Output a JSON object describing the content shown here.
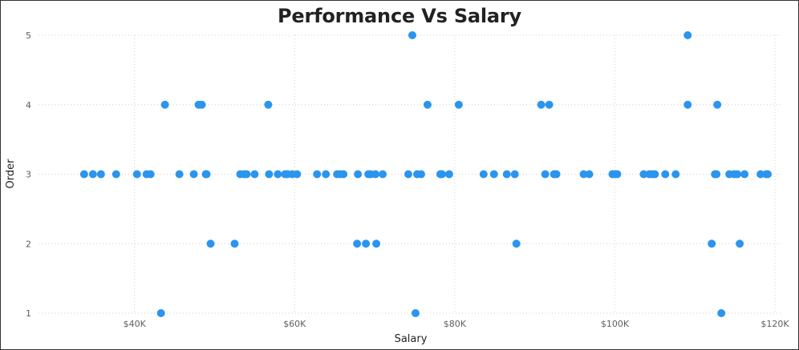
{
  "chart_data": {
    "type": "scatter",
    "title": "Performance Vs Salary",
    "xlabel": "Salary",
    "ylabel": "Order",
    "xlim": [
      28000,
      121000
    ],
    "ylim": [
      1,
      5
    ],
    "x_ticks": [
      40000,
      60000,
      80000,
      100000,
      120000
    ],
    "x_tick_labels": [
      "$40K",
      "$60K",
      "$80K",
      "$100K",
      "$120K"
    ],
    "y_ticks": [
      1,
      2,
      3,
      4,
      5
    ],
    "y_tick_labels": [
      "1",
      "2",
      "3",
      "4",
      "5"
    ],
    "grid": true,
    "legend": "none",
    "marker_color": "#2B95EE",
    "points": [
      {
        "x": 43300,
        "y": 1
      },
      {
        "x": 75100,
        "y": 1
      },
      {
        "x": 113300,
        "y": 1
      },
      {
        "x": 49500,
        "y": 2
      },
      {
        "x": 52500,
        "y": 2
      },
      {
        "x": 67800,
        "y": 2
      },
      {
        "x": 68900,
        "y": 2
      },
      {
        "x": 70200,
        "y": 2
      },
      {
        "x": 87700,
        "y": 2
      },
      {
        "x": 112100,
        "y": 2
      },
      {
        "x": 115600,
        "y": 2
      },
      {
        "x": 43800,
        "y": 4
      },
      {
        "x": 48000,
        "y": 4
      },
      {
        "x": 48400,
        "y": 4
      },
      {
        "x": 56700,
        "y": 4
      },
      {
        "x": 76600,
        "y": 4
      },
      {
        "x": 80500,
        "y": 4
      },
      {
        "x": 90800,
        "y": 4
      },
      {
        "x": 91800,
        "y": 4
      },
      {
        "x": 109100,
        "y": 4
      },
      {
        "x": 112800,
        "y": 4
      },
      {
        "x": 74700,
        "y": 5
      },
      {
        "x": 109100,
        "y": 5
      },
      {
        "x": 33700,
        "y": 3
      },
      {
        "x": 34800,
        "y": 3
      },
      {
        "x": 35800,
        "y": 3
      },
      {
        "x": 37700,
        "y": 3
      },
      {
        "x": 40300,
        "y": 3
      },
      {
        "x": 41500,
        "y": 3
      },
      {
        "x": 42000,
        "y": 3
      },
      {
        "x": 45600,
        "y": 3
      },
      {
        "x": 47400,
        "y": 3
      },
      {
        "x": 48900,
        "y": 3
      },
      {
        "x": 49000,
        "y": 3
      },
      {
        "x": 53200,
        "y": 3
      },
      {
        "x": 53700,
        "y": 3
      },
      {
        "x": 54000,
        "y": 3
      },
      {
        "x": 55000,
        "y": 3
      },
      {
        "x": 56800,
        "y": 3
      },
      {
        "x": 57900,
        "y": 3
      },
      {
        "x": 58800,
        "y": 3
      },
      {
        "x": 59100,
        "y": 3
      },
      {
        "x": 59700,
        "y": 3
      },
      {
        "x": 60300,
        "y": 3
      },
      {
        "x": 62800,
        "y": 3
      },
      {
        "x": 63900,
        "y": 3
      },
      {
        "x": 65300,
        "y": 3
      },
      {
        "x": 65700,
        "y": 3
      },
      {
        "x": 66100,
        "y": 3
      },
      {
        "x": 67900,
        "y": 3
      },
      {
        "x": 69200,
        "y": 3
      },
      {
        "x": 69500,
        "y": 3
      },
      {
        "x": 70100,
        "y": 3
      },
      {
        "x": 71000,
        "y": 3
      },
      {
        "x": 74200,
        "y": 3
      },
      {
        "x": 75300,
        "y": 3
      },
      {
        "x": 75800,
        "y": 3
      },
      {
        "x": 78200,
        "y": 3
      },
      {
        "x": 78400,
        "y": 3
      },
      {
        "x": 79300,
        "y": 3
      },
      {
        "x": 83600,
        "y": 3
      },
      {
        "x": 84900,
        "y": 3
      },
      {
        "x": 86500,
        "y": 3
      },
      {
        "x": 87500,
        "y": 3
      },
      {
        "x": 91300,
        "y": 3
      },
      {
        "x": 92400,
        "y": 3
      },
      {
        "x": 92700,
        "y": 3
      },
      {
        "x": 96100,
        "y": 3
      },
      {
        "x": 96800,
        "y": 3
      },
      {
        "x": 99700,
        "y": 3
      },
      {
        "x": 100000,
        "y": 3
      },
      {
        "x": 100300,
        "y": 3
      },
      {
        "x": 103600,
        "y": 3
      },
      {
        "x": 104300,
        "y": 3
      },
      {
        "x": 104700,
        "y": 3
      },
      {
        "x": 105000,
        "y": 3
      },
      {
        "x": 106300,
        "y": 3
      },
      {
        "x": 107600,
        "y": 3
      },
      {
        "x": 112500,
        "y": 3
      },
      {
        "x": 112700,
        "y": 3
      },
      {
        "x": 114300,
        "y": 3
      },
      {
        "x": 114900,
        "y": 3
      },
      {
        "x": 115300,
        "y": 3
      },
      {
        "x": 116200,
        "y": 3
      },
      {
        "x": 118200,
        "y": 3
      },
      {
        "x": 118900,
        "y": 3
      },
      {
        "x": 119100,
        "y": 3
      }
    ]
  }
}
